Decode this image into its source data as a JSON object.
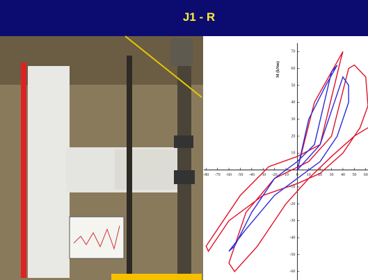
{
  "header": {
    "title": "J1 - R"
  },
  "chart_data": {
    "type": "line",
    "ylabel": "M (kNm)",
    "xlim": [
      -82,
      62
    ],
    "ylim": [
      -65,
      75
    ],
    "xticks": [
      -80,
      -70,
      -60,
      -50,
      -40,
      -30,
      -20,
      -10,
      0,
      10,
      20,
      30,
      40,
      50,
      60
    ],
    "yticks": [
      -60,
      -50,
      -40,
      -30,
      -20,
      -10,
      10,
      20,
      30,
      40,
      50,
      60,
      70
    ],
    "series": [
      {
        "color": "#e0102a",
        "x": [
          0,
          15,
          30,
          40,
          38,
          20,
          0,
          -25,
          -50,
          -70,
          -80,
          -78,
          -60,
          -30,
          0,
          20,
          40,
          55,
          62,
          60,
          50,
          45,
          30,
          10,
          -20,
          -45,
          -60,
          -55,
          -35,
          -10,
          10,
          30,
          50,
          62
        ],
        "values": [
          0,
          40,
          58,
          70,
          65,
          15,
          8,
          2,
          -15,
          -35,
          -45,
          -48,
          -30,
          -15,
          -8,
          -2,
          10,
          25,
          38,
          55,
          62,
          60,
          20,
          5,
          -5,
          -25,
          -55,
          -60,
          -45,
          -20,
          -5,
          8,
          20,
          25
        ]
      },
      {
        "color": "#2a2ad8",
        "x": [
          0,
          10,
          25,
          35,
          30,
          15,
          0,
          -20,
          -40,
          -55,
          -60,
          -45,
          -20,
          0,
          20,
          35,
          45,
          45,
          40,
          20,
          0
        ],
        "values": [
          0,
          30,
          50,
          62,
          58,
          15,
          5,
          -5,
          -25,
          -45,
          -48,
          -35,
          -15,
          -5,
          5,
          20,
          40,
          50,
          55,
          15,
          0
        ]
      }
    ]
  }
}
